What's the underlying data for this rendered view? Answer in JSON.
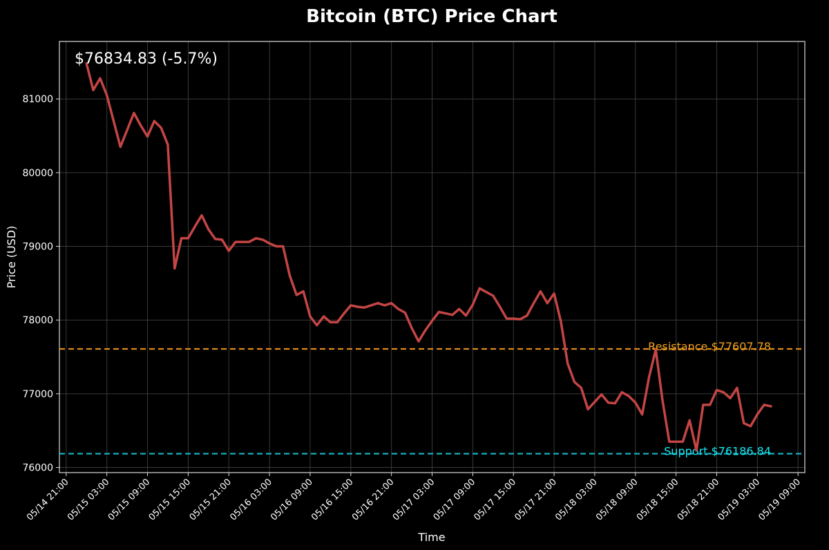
{
  "chart_data": {
    "type": "line",
    "title": "Bitcoin (BTC) Price Chart",
    "xlabel": "Time",
    "ylabel": "Price (USD)",
    "price_label": "$76834.83 (-5.7%)",
    "grid": true,
    "ylim": [
      75930,
      81780
    ],
    "yticks": [
      76000,
      77000,
      78000,
      79000,
      80000,
      81000
    ],
    "ytick_labels": [
      "76000",
      "77000",
      "78000",
      "79000",
      "80000",
      "81000"
    ],
    "xlim": [
      "05/14 20:00",
      "05/19 10:00"
    ],
    "xticks": [
      "05/14 21:00",
      "05/15 03:00",
      "05/15 09:00",
      "05/15 15:00",
      "05/15 21:00",
      "05/16 03:00",
      "05/16 09:00",
      "05/16 15:00",
      "05/16 21:00",
      "05/17 03:00",
      "05/17 09:00",
      "05/17 15:00",
      "05/17 21:00",
      "05/18 03:00",
      "05/18 09:00",
      "05/18 15:00",
      "05/18 21:00",
      "05/19 03:00",
      "05/19 09:00"
    ],
    "colors": {
      "line": "#c44545",
      "resistance": "#e08a1e",
      "resistance_text": "#f0a020",
      "support": "#17b0c0",
      "support_text": "#18e6f2",
      "grid": "#3a3a3a",
      "axes": "#dddddd"
    },
    "levels": [
      {
        "name": "resistance",
        "label": "Resistance $77607.78",
        "value": 77607.78
      },
      {
        "name": "support",
        "label": "Support $76186.84",
        "value": 76186.84
      }
    ],
    "series": [
      {
        "x": [
          "05/15 00:00",
          "05/15 01:00",
          "05/15 02:00",
          "05/15 03:00",
          "05/15 04:00",
          "05/15 05:00",
          "05/15 06:00",
          "05/15 07:00",
          "05/15 08:00",
          "05/15 09:00",
          "05/15 10:00",
          "05/15 11:00",
          "05/15 12:00",
          "05/15 13:00",
          "05/15 14:00",
          "05/15 15:00",
          "05/15 16:00",
          "05/15 17:00",
          "05/15 18:00",
          "05/15 19:00",
          "05/15 20:00",
          "05/15 21:00",
          "05/15 22:00",
          "05/15 23:00",
          "05/16 00:00",
          "05/16 01:00",
          "05/16 02:00",
          "05/16 03:00",
          "05/16 04:00",
          "05/16 05:00",
          "05/16 06:00",
          "05/16 07:00",
          "05/16 08:00",
          "05/16 09:00",
          "05/16 10:00",
          "05/16 11:00",
          "05/16 12:00",
          "05/16 13:00",
          "05/16 14:00",
          "05/16 15:00",
          "05/16 16:00",
          "05/16 17:00",
          "05/16 18:00",
          "05/16 19:00",
          "05/16 20:00",
          "05/16 21:00",
          "05/16 22:00",
          "05/16 23:00",
          "05/17 00:00",
          "05/17 01:00",
          "05/17 02:00",
          "05/17 03:00",
          "05/17 04:00",
          "05/17 05:00",
          "05/17 06:00",
          "05/17 07:00",
          "05/17 08:00",
          "05/17 09:00",
          "05/17 10:00",
          "05/17 11:00",
          "05/17 12:00",
          "05/17 13:00",
          "05/17 14:00",
          "05/17 15:00",
          "05/17 16:00",
          "05/17 17:00",
          "05/17 18:00",
          "05/17 19:00",
          "05/17 20:00",
          "05/17 21:00",
          "05/17 22:00",
          "05/17 23:00",
          "05/18 00:00",
          "05/18 01:00",
          "05/18 02:00",
          "05/18 03:00",
          "05/18 04:00",
          "05/18 05:00",
          "05/18 06:00",
          "05/18 07:00",
          "05/18 08:00",
          "05/18 09:00",
          "05/18 10:00",
          "05/18 11:00",
          "05/18 12:00",
          "05/18 13:00",
          "05/18 14:00",
          "05/18 15:00",
          "05/18 16:00",
          "05/18 17:00",
          "05/18 18:00",
          "05/18 19:00",
          "05/18 20:00",
          "05/18 21:00",
          "05/18 22:00",
          "05/18 23:00",
          "05/19 00:00",
          "05/19 01:00",
          "05/19 02:00",
          "05/19 03:00",
          "05/19 04:00",
          "05/19 05:00"
        ],
        "y": [
          81480,
          81120,
          81280,
          81050,
          80700,
          80350,
          80580,
          80810,
          80640,
          80490,
          80700,
          80610,
          80380,
          78700,
          79110,
          79110,
          79270,
          79420,
          79230,
          79100,
          79090,
          78940,
          79060,
          79060,
          79060,
          79110,
          79090,
          79040,
          79000,
          79000,
          78600,
          78340,
          78390,
          78050,
          77930,
          78050,
          77970,
          77970,
          78090,
          78200,
          78180,
          78170,
          78200,
          78230,
          78200,
          78230,
          78150,
          78100,
          77890,
          77710,
          77860,
          77990,
          78110,
          78090,
          78070,
          78150,
          78060,
          78210,
          78430,
          78380,
          78330,
          78180,
          78020,
          78020,
          78010,
          78060,
          78230,
          78390,
          78230,
          78360,
          77980,
          77410,
          77160,
          77080,
          76790,
          76890,
          76990,
          76880,
          76870,
          77020,
          76970,
          76880,
          76720,
          77220,
          77600,
          76910,
          76350,
          76350,
          76350,
          76640,
          76230,
          76850,
          76850,
          77050,
          77020,
          76940,
          77080,
          76600,
          76560,
          76720,
          76850,
          76830
        ]
      }
    ]
  }
}
